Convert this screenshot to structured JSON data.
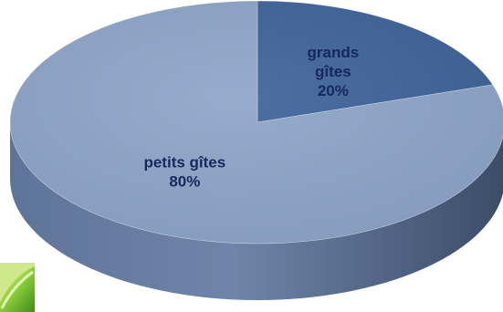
{
  "chart_data": {
    "type": "pie",
    "title": "",
    "three_d": true,
    "slices": [
      {
        "label_lines": [
          "grands",
          "gîtes",
          "20%"
        ],
        "value": 20,
        "color": "#3f6399"
      },
      {
        "label_lines": [
          "petits gîtes",
          "80%"
        ],
        "value": 80,
        "color": "#8ea5c9"
      }
    ],
    "start_angle_deg": -90,
    "legend": "none"
  },
  "decoration": {
    "corner_image": "green-leaf-icon"
  }
}
